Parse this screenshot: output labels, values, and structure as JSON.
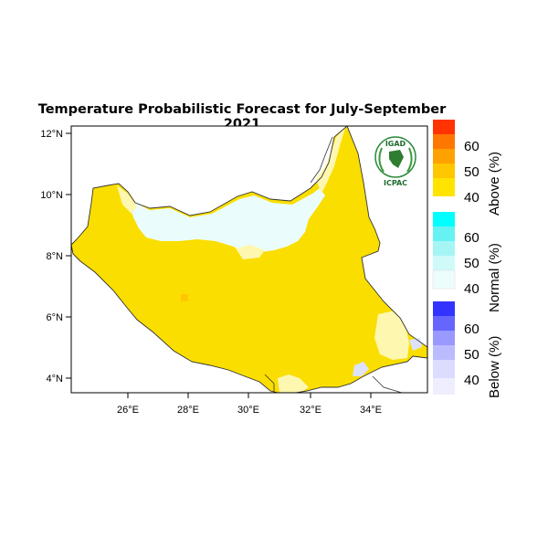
{
  "title": "Temperature Probabilistic Forecast for July-September 2021",
  "logo": {
    "top_text": "IGAD",
    "bottom_text": "ICPAC"
  },
  "axes": {
    "lat_ticks": [
      "12°N",
      "10°N",
      "8°N",
      "6°N",
      "4°N"
    ],
    "lon_ticks": [
      "26°E",
      "28°E",
      "30°E",
      "32°E",
      "34°E"
    ]
  },
  "legend": {
    "above": {
      "label": "Above (%)",
      "ticks": [
        "60",
        "50",
        "40"
      ],
      "colors": [
        "#ff3300",
        "#ff7700",
        "#ffa200",
        "#ffc700",
        "#ffe400"
      ]
    },
    "normal": {
      "label": "Normal (%)",
      "ticks": [
        "60",
        "50",
        "40"
      ],
      "colors": [
        "#00ffff",
        "#66f2f2",
        "#a6f5f5",
        "#cffafa",
        "#ebfdfd"
      ]
    },
    "below": {
      "label": "Below (%)",
      "ticks": [
        "60",
        "50",
        "40"
      ],
      "colors": [
        "#3333ff",
        "#6666ff",
        "#9999ff",
        "#bbbbff",
        "#dcdcff"
      ]
    }
  },
  "map_colors": {
    "above_40": "#fade00",
    "above_45": "#ffc700",
    "above_35": "#fdf7b0",
    "normal_40": "#ebfcfc",
    "below_35": "#dde2fa"
  }
}
